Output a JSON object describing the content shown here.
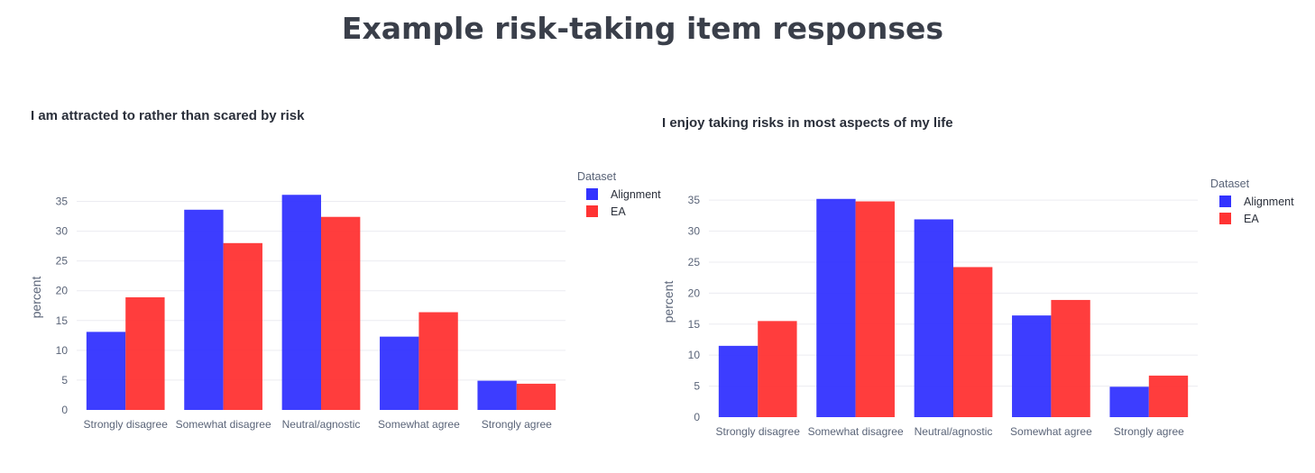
{
  "page": {
    "title": "Example risk-taking item responses"
  },
  "colors": {
    "Alignment": "#3333ff",
    "EA": "#ff3333"
  },
  "chart_data": [
    {
      "type": "bar",
      "title": "I am attracted to rather than scared by risk",
      "categories": [
        "Strongly disagree",
        "Somewhat disagree",
        "Neutral/agnostic",
        "Somewhat agree",
        "Strongly agree"
      ],
      "series": [
        {
          "name": "Alignment",
          "values": [
            13.1,
            33.6,
            36.1,
            12.3,
            4.9
          ]
        },
        {
          "name": "EA",
          "values": [
            18.9,
            28.0,
            32.4,
            16.4,
            4.4
          ]
        }
      ],
      "xlabel": "",
      "ylabel": "percent",
      "yticks": [
        0,
        5,
        10,
        15,
        20,
        25,
        30,
        35
      ],
      "ylim": [
        0,
        37.8
      ],
      "legend_title": "Dataset",
      "legend_position": "right",
      "grid": true
    },
    {
      "type": "bar",
      "title": "I enjoy taking risks in most aspects of my life",
      "categories": [
        "Strongly disagree",
        "Somewhat disagree",
        "Neutral/agnostic",
        "Somewhat agree",
        "Strongly agree"
      ],
      "series": [
        {
          "name": "Alignment",
          "values": [
            11.5,
            35.2,
            31.9,
            16.4,
            4.9
          ]
        },
        {
          "name": "EA",
          "values": [
            15.5,
            34.8,
            24.2,
            18.9,
            6.7
          ]
        }
      ],
      "xlabel": "",
      "ylabel": "percent",
      "yticks": [
        0,
        5,
        10,
        15,
        20,
        25,
        30,
        35
      ],
      "ylim": [
        0,
        37.2
      ],
      "legend_title": "Dataset",
      "legend_position": "right",
      "grid": true
    }
  ]
}
